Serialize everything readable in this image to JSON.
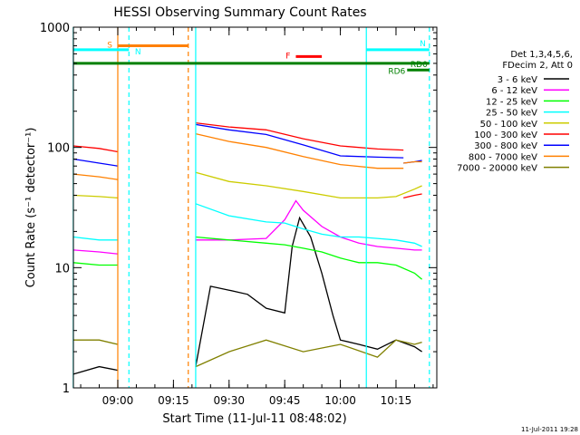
{
  "chart_data": {
    "type": "line",
    "title": "HESSI Observing Summary Count Rates",
    "xlabel": "Start Time (11-Jul-11 08:48:02)",
    "ylabel": "Count Rate (s⁻¹ detector⁻¹)",
    "y_scale": "log",
    "ylim": [
      1,
      1000
    ],
    "xlim": [
      "08:48:02",
      "10:26:00"
    ],
    "x_ticks": [
      "09:00",
      "09:15",
      "09:30",
      "09:45",
      "10:00",
      "10:15"
    ],
    "y_ticks": [
      "1",
      "10",
      "100",
      "1000"
    ],
    "legend_title": [
      "Det 1,3,4,5,6,",
      "FDecim 2, Att 0"
    ],
    "legend_placement": "right",
    "timestamp": "11-Jul-2011 19:28",
    "series": [
      {
        "name": "3 - 6 keV",
        "color": "#000000",
        "segments": [
          [
            [
              "08:48",
              1.3
            ],
            [
              "08:55",
              1.5
            ],
            [
              "09:00",
              1.4
            ]
          ],
          [
            [
              "09:21",
              1.5
            ],
            [
              "09:25",
              7
            ],
            [
              "09:30",
              6.5
            ],
            [
              "09:35",
              6
            ],
            [
              "09:40",
              4.6
            ],
            [
              "09:45",
              4.2
            ],
            [
              "09:47",
              15
            ],
            [
              "09:49",
              26
            ],
            [
              "09:52",
              18
            ],
            [
              "09:55",
              9
            ],
            [
              "09:58",
              4
            ],
            [
              "10:00",
              2.5
            ],
            [
              "10:05",
              2.3
            ],
            [
              "10:10",
              2.1
            ],
            [
              "10:15",
              2.5
            ],
            [
              "10:20",
              2.2
            ],
            [
              "10:22",
              2.0
            ]
          ]
        ]
      },
      {
        "name": "6 - 12 keV",
        "color": "#ff00ff",
        "segments": [
          [
            [
              "08:48",
              14
            ],
            [
              "08:55",
              13.5
            ],
            [
              "09:00",
              13
            ]
          ],
          [
            [
              "09:21",
              17
            ],
            [
              "09:30",
              17
            ],
            [
              "09:40",
              17.5
            ],
            [
              "09:45",
              25
            ],
            [
              "09:48",
              36
            ],
            [
              "09:50",
              30
            ],
            [
              "09:55",
              22
            ],
            [
              "10:00",
              18
            ],
            [
              "10:05",
              16
            ],
            [
              "10:10",
              15
            ],
            [
              "10:15",
              14.5
            ],
            [
              "10:20",
              14
            ],
            [
              "10:22",
              14
            ]
          ]
        ]
      },
      {
        "name": "12 - 25 keV",
        "color": "#00ff00",
        "segments": [
          [
            [
              "08:48",
              11
            ],
            [
              "08:55",
              10.5
            ],
            [
              "09:00",
              10.5
            ]
          ],
          [
            [
              "09:21",
              18
            ],
            [
              "09:30",
              17
            ],
            [
              "09:40",
              16
            ],
            [
              "09:45",
              15.5
            ],
            [
              "09:50",
              14.5
            ],
            [
              "09:55",
              13.5
            ],
            [
              "10:00",
              12
            ],
            [
              "10:05",
              11
            ],
            [
              "10:10",
              11
            ],
            [
              "10:15",
              10.5
            ],
            [
              "10:20",
              9
            ],
            [
              "10:22",
              8
            ]
          ]
        ]
      },
      {
        "name": "25 - 50 keV",
        "color": "#00ffff",
        "segments": [
          [
            [
              "08:48",
              18
            ],
            [
              "08:55",
              17
            ],
            [
              "09:00",
              17
            ]
          ],
          [
            [
              "09:21",
              34
            ],
            [
              "09:30",
              27
            ],
            [
              "09:40",
              24
            ],
            [
              "09:45",
              23.5
            ],
            [
              "09:50",
              21
            ],
            [
              "09:55",
              19
            ],
            [
              "10:00",
              18
            ],
            [
              "10:05",
              18
            ],
            [
              "10:10",
              17.5
            ],
            [
              "10:15",
              17
            ],
            [
              "10:20",
              16
            ],
            [
              "10:22",
              15
            ]
          ]
        ]
      },
      {
        "name": "50 - 100 keV",
        "color": "#cccc00",
        "segments": [
          [
            [
              "08:48",
              40
            ],
            [
              "08:55",
              39
            ],
            [
              "09:00",
              38
            ]
          ],
          [
            [
              "09:21",
              62
            ],
            [
              "09:30",
              52
            ],
            [
              "09:40",
              48
            ],
            [
              "09:50",
              43
            ],
            [
              "10:00",
              38
            ],
            [
              "10:10",
              38
            ],
            [
              "10:15",
              39
            ],
            [
              "10:20",
              45
            ],
            [
              "10:22",
              48
            ]
          ]
        ]
      },
      {
        "name": "100 - 300 keV",
        "color": "#ff0000",
        "segments": [
          [
            [
              "08:48",
              103
            ],
            [
              "08:55",
              98
            ],
            [
              "09:00",
              92
            ]
          ],
          [
            [
              "09:21",
              160
            ],
            [
              "09:30",
              148
            ],
            [
              "09:40",
              140
            ],
            [
              "09:50",
              118
            ],
            [
              "10:00",
              103
            ],
            [
              "10:10",
              97
            ],
            [
              "10:17",
              95
            ]
          ],
          [
            [
              "10:17",
              38
            ],
            [
              "10:20",
              40
            ],
            [
              "10:22",
              41
            ]
          ]
        ]
      },
      {
        "name": "300 - 800 keV",
        "color": "#0000ff",
        "segments": [
          [
            [
              "08:48",
              80
            ],
            [
              "08:55",
              74
            ],
            [
              "09:00",
              70
            ]
          ],
          [
            [
              "09:21",
              155
            ],
            [
              "09:30",
              140
            ],
            [
              "09:40",
              128
            ],
            [
              "09:50",
              105
            ],
            [
              "10:00",
              85
            ],
            [
              "10:10",
              83
            ],
            [
              "10:17",
              82
            ]
          ],
          [
            [
              "10:17",
              74
            ],
            [
              "10:20",
              76
            ],
            [
              "10:22",
              78
            ]
          ]
        ]
      },
      {
        "name": "800 - 7000 keV",
        "color": "#ff8000",
        "segments": [
          [
            [
              "08:48",
              60
            ],
            [
              "08:55",
              57
            ],
            [
              "09:00",
              54
            ]
          ],
          [
            [
              "09:21",
              130
            ],
            [
              "09:30",
              112
            ],
            [
              "09:40",
              100
            ],
            [
              "09:50",
              84
            ],
            [
              "10:00",
              72
            ],
            [
              "10:10",
              67
            ],
            [
              "10:17",
              67
            ]
          ],
          [
            [
              "10:17",
              74
            ],
            [
              "10:20",
              76
            ],
            [
              "10:22",
              76
            ]
          ]
        ]
      },
      {
        "name": "7000 - 20000 keV",
        "color": "#808000",
        "segments": [
          [
            [
              "08:48",
              2.5
            ],
            [
              "08:55",
              2.5
            ],
            [
              "09:00",
              2.3
            ]
          ],
          [
            [
              "09:21",
              1.5
            ],
            [
              "09:30",
              2.0
            ],
            [
              "09:40",
              2.5
            ],
            [
              "09:50",
              2.0
            ],
            [
              "10:00",
              2.3
            ],
            [
              "10:10",
              1.8
            ],
            [
              "10:15",
              2.5
            ],
            [
              "10:20",
              2.3
            ],
            [
              "10:22",
              2.4
            ]
          ]
        ]
      }
    ],
    "vertical_lines": [
      {
        "time": "08:48",
        "color": "#00ffff",
        "style": "solid"
      },
      {
        "time": "09:00",
        "color": "#ff8000",
        "style": "solid"
      },
      {
        "time": "09:03",
        "color": "#00ffff",
        "style": "dashed"
      },
      {
        "time": "09:19",
        "color": "#ff8000",
        "style": "dashed"
      },
      {
        "time": "09:21",
        "color": "#00ffff",
        "style": "solid"
      },
      {
        "time": "10:07",
        "color": "#00ffff",
        "style": "solid"
      },
      {
        "time": "10:24",
        "color": "#00ffff",
        "style": "dashed"
      }
    ],
    "flag_bars": [
      {
        "label": "S",
        "color": "#ff8000",
        "start": "09:00",
        "end": "09:19",
        "value": 700
      },
      {
        "label": "N",
        "color": "#00ffff",
        "start": "08:48",
        "end": "09:03",
        "value": 650
      },
      {
        "label": "N",
        "color": "#00ffff",
        "start": "10:07",
        "end": "10:24",
        "value": 650
      },
      {
        "label": "F",
        "color": "#ff0000",
        "start": "09:48",
        "end": "09:55",
        "value": 570
      },
      {
        "label": "RD0",
        "color": "#008000",
        "start": "08:48",
        "end": "10:24",
        "value": 500
      },
      {
        "label": "RD6",
        "color": "#008000",
        "start": "10:18",
        "end": "10:24",
        "value": 440
      }
    ]
  }
}
